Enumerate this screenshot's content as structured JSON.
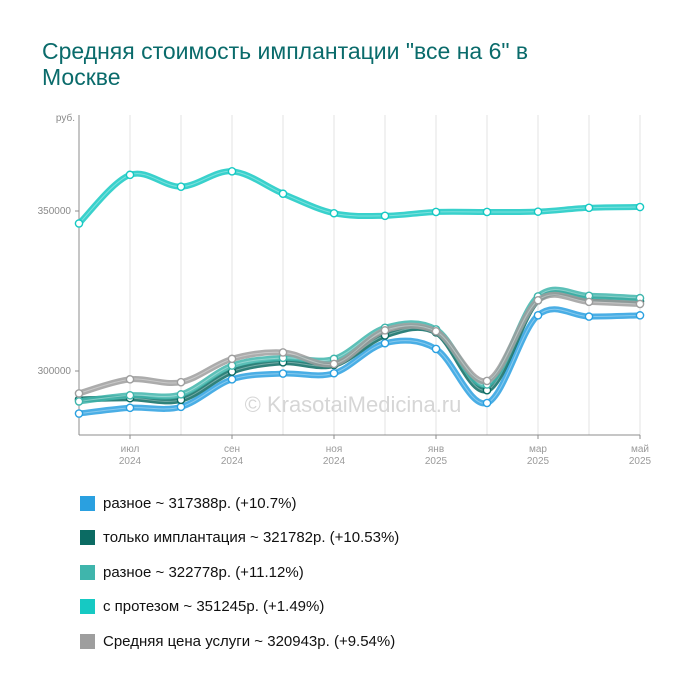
{
  "chart_data": {
    "type": "line",
    "title": "Средняя стоимость имплантации \"все на 6\" в Москве",
    "ylabel": "руб.",
    "ylim": [
      280000,
      380000
    ],
    "yticks": [
      {
        "value": 300000,
        "label": "300000"
      },
      {
        "value": 350000,
        "label": "350000"
      }
    ],
    "x_labels": [
      {
        "index": 1,
        "month": "июл",
        "year": "2024"
      },
      {
        "index": 3,
        "month": "сен",
        "year": "2024"
      },
      {
        "index": 5,
        "month": "ноя",
        "year": "2024"
      },
      {
        "index": 7,
        "month": "янв",
        "year": "2025"
      },
      {
        "index": 9,
        "month": "мар",
        "year": "2025"
      },
      {
        "index": 11,
        "month": "май",
        "year": "2025"
      }
    ],
    "grid": true,
    "legend_position": "bottom",
    "watermark": "© KrasotaiMedicina.ru",
    "series": [
      {
        "name": "с протезом",
        "color": "#16c9c3",
        "summary": "с протезом ~ 351245р. (+1.49%)",
        "values": [
          346100,
          361300,
          357600,
          362400,
          355400,
          349300,
          348500,
          349700,
          349700,
          349800,
          351000,
          351245
        ]
      },
      {
        "name": "разное",
        "color": "#2aa0e0",
        "summary": "разное ~ 317388р. (+10.7%)",
        "values": [
          286700,
          288500,
          288800,
          297400,
          299200,
          299300,
          308700,
          306900,
          290000,
          317400,
          317000,
          317388
        ]
      },
      {
        "name": "только имплантация",
        "color": "#0b6b63",
        "summary": "только имплантация ~ 321782р. (+10.53%)",
        "values": [
          291100,
          291500,
          291000,
          299800,
          302700,
          301900,
          311100,
          312100,
          294000,
          322100,
          322700,
          321782
        ]
      },
      {
        "name": "разное",
        "color": "#3fb5ac",
        "summary": "разное ~ 322778р. (+11.12%)",
        "values": [
          290500,
          292400,
          292700,
          301700,
          304100,
          303800,
          313500,
          313000,
          295800,
          323300,
          323500,
          322778
        ]
      },
      {
        "name": "Средняя цена услуги",
        "color": "#9e9e9e",
        "summary": "Средняя цена услуги ~ 320943р. (+9.54%)",
        "values": [
          293000,
          297400,
          296500,
          303800,
          305800,
          302200,
          312700,
          312400,
          296900,
          322100,
          321600,
          320943
        ]
      }
    ],
    "legend_order": [
      1,
      2,
      3,
      0,
      4
    ]
  }
}
